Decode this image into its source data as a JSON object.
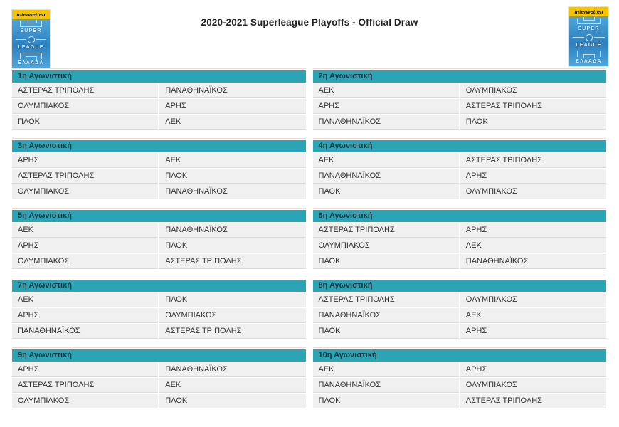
{
  "title": "2020-2021 Superleague Playoffs - Official Draw",
  "logo": {
    "sponsor": "interwetten",
    "word1": "SUPER",
    "word2": "LEAGUE",
    "word3": "ΕΛΛΑΔΑ"
  },
  "colors": {
    "header_teal": "#2BA4B5",
    "header_text": "#17343F",
    "cell_bg": "#F0F0F0",
    "cell_text": "#333333",
    "logo_yellow": "#F5C400",
    "logo_blue_light": "#4FA6D8",
    "logo_blue_dark": "#2E7FC0"
  },
  "matchdays": [
    {
      "label": "1η Αγωνιστική",
      "matches": [
        [
          "ΑΣΤΕΡΑΣ ΤΡΙΠΟΛΗΣ",
          "ΠΑΝΑΘΗΝΑΪΚΟΣ"
        ],
        [
          "ΟΛΥΜΠΙΑΚΟΣ",
          "ΑΡΗΣ"
        ],
        [
          "ΠΑΟΚ",
          "ΑΕΚ"
        ]
      ]
    },
    {
      "label": "2η Αγωνιστική",
      "matches": [
        [
          "ΑΕΚ",
          "ΟΛΥΜΠΙΑΚΟΣ"
        ],
        [
          "ΑΡΗΣ",
          "ΑΣΤΕΡΑΣ ΤΡΙΠΟΛΗΣ"
        ],
        [
          "ΠΑΝΑΘΗΝΑΪΚΟΣ",
          "ΠΑΟΚ"
        ]
      ]
    },
    {
      "label": "3η Αγωνιστική",
      "matches": [
        [
          "ΑΡΗΣ",
          "ΑΕΚ"
        ],
        [
          "ΑΣΤΕΡΑΣ ΤΡΙΠΟΛΗΣ",
          "ΠΑΟΚ"
        ],
        [
          "ΟΛΥΜΠΙΑΚΟΣ",
          "ΠΑΝΑΘΗΝΑΪΚΟΣ"
        ]
      ]
    },
    {
      "label": "4η Αγωνιστική",
      "matches": [
        [
          "ΑΕΚ",
          "ΑΣΤΕΡΑΣ ΤΡΙΠΟΛΗΣ"
        ],
        [
          "ΠΑΝΑΘΗΝΑΪΚΟΣ",
          "ΑΡΗΣ"
        ],
        [
          "ΠΑΟΚ",
          "ΟΛΥΜΠΙΑΚΟΣ"
        ]
      ]
    },
    {
      "label": "5η Αγωνιστική",
      "matches": [
        [
          "ΑΕΚ",
          "ΠΑΝΑΘΗΝΑΪΚΟΣ"
        ],
        [
          "ΑΡΗΣ",
          "ΠΑΟΚ"
        ],
        [
          "ΟΛΥΜΠΙΑΚΟΣ",
          "ΑΣΤΕΡΑΣ ΤΡΙΠΟΛΗΣ"
        ]
      ]
    },
    {
      "label": "6η Αγωνιστική",
      "matches": [
        [
          "ΑΣΤΕΡΑΣ ΤΡΙΠΟΛΗΣ",
          "ΑΡΗΣ"
        ],
        [
          "ΟΛΥΜΠΙΑΚΟΣ",
          "ΑΕΚ"
        ],
        [
          "ΠΑΟΚ",
          "ΠΑΝΑΘΗΝΑΪΚΟΣ"
        ]
      ]
    },
    {
      "label": "7η Αγωνιστική",
      "matches": [
        [
          "ΑΕΚ",
          "ΠΑΟΚ"
        ],
        [
          "ΑΡΗΣ",
          "ΟΛΥΜΠΙΑΚΟΣ"
        ],
        [
          "ΠΑΝΑΘΗΝΑΪΚΟΣ",
          "ΑΣΤΕΡΑΣ ΤΡΙΠΟΛΗΣ"
        ]
      ]
    },
    {
      "label": "8η Αγωνιστική",
      "matches": [
        [
          "ΑΣΤΕΡΑΣ ΤΡΙΠΟΛΗΣ",
          "ΟΛΥΜΠΙΑΚΟΣ"
        ],
        [
          "ΠΑΝΑΘΗΝΑΪΚΟΣ",
          "ΑΕΚ"
        ],
        [
          "ΠΑΟΚ",
          "ΑΡΗΣ"
        ]
      ]
    },
    {
      "label": "9η Αγωνιστική",
      "matches": [
        [
          "ΑΡΗΣ",
          "ΠΑΝΑΘΗΝΑΪΚΟΣ"
        ],
        [
          "ΑΣΤΕΡΑΣ ΤΡΙΠΟΛΗΣ",
          "ΑΕΚ"
        ],
        [
          "ΟΛΥΜΠΙΑΚΟΣ",
          "ΠΑΟΚ"
        ]
      ]
    },
    {
      "label": "10η Αγωνιστική",
      "matches": [
        [
          "ΑΕΚ",
          "ΑΡΗΣ"
        ],
        [
          "ΠΑΝΑΘΗΝΑΪΚΟΣ",
          "ΟΛΥΜΠΙΑΚΟΣ"
        ],
        [
          "ΠΑΟΚ",
          "ΑΣΤΕΡΑΣ ΤΡΙΠΟΛΗΣ"
        ]
      ]
    }
  ]
}
